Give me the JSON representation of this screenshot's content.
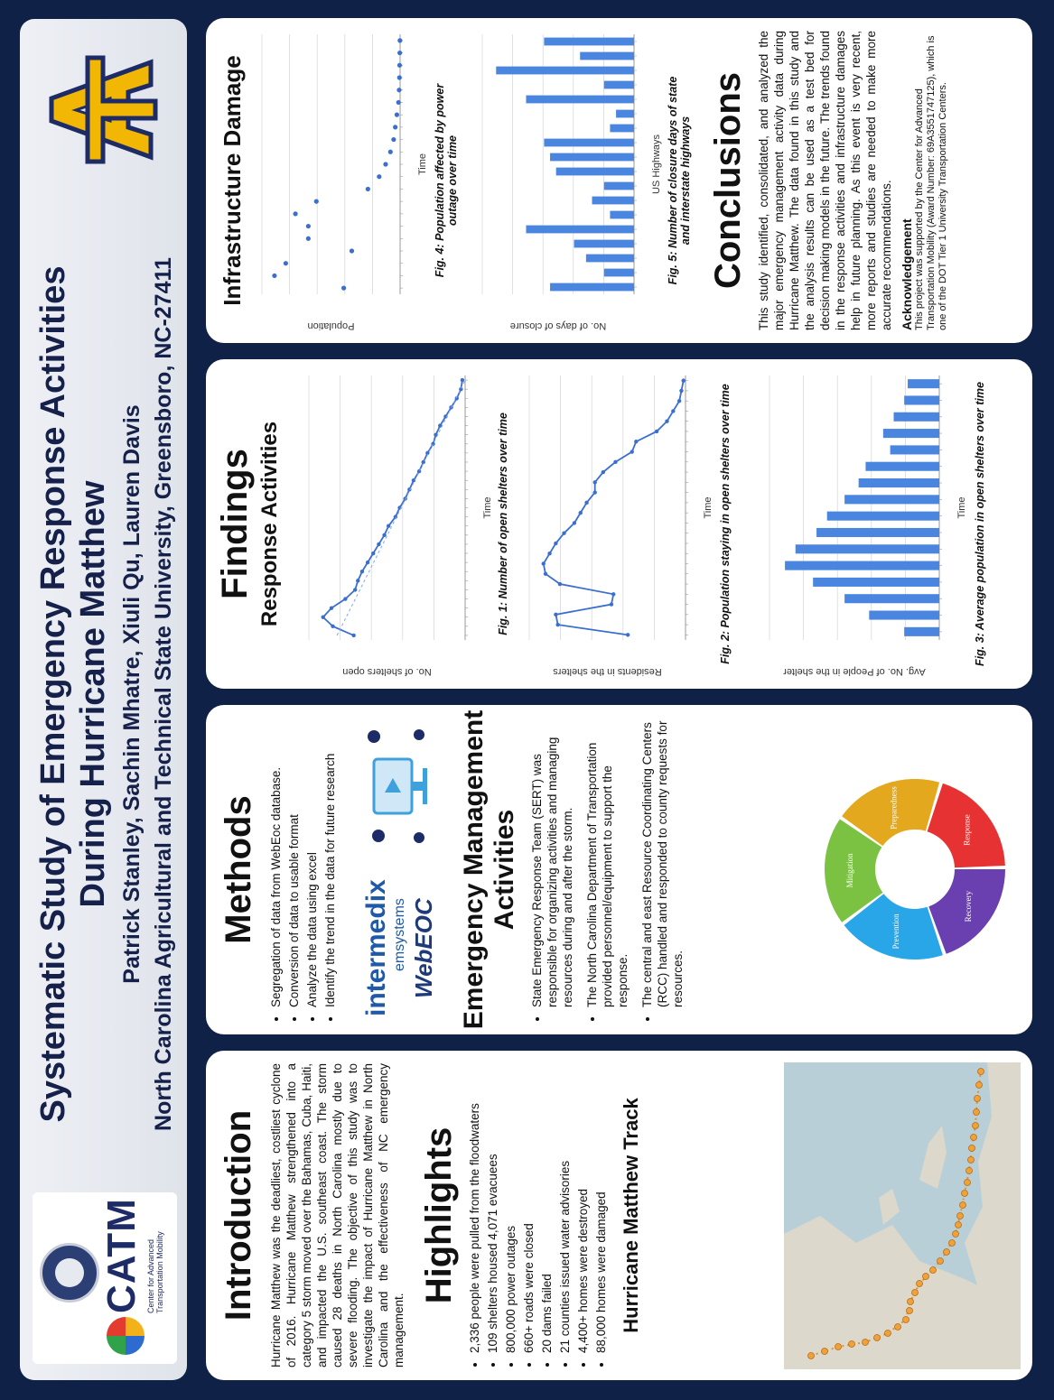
{
  "header": {
    "title_line1": "Systematic Study of Emergency Response Activities",
    "title_line2": "During Hurricane Matthew",
    "authors": "Patrick Stanley, Sachin Mhatre, Xiuli Qu, Lauren Davis",
    "affiliation": "North Carolina Agricultural and Technical State University, Greensboro, NC-27411",
    "logo_left_text": "CATM",
    "logo_left_tagline": "Center for Advanced Transportation Mobility",
    "logo_right_text": "AT"
  },
  "introduction": {
    "heading": "Introduction",
    "text": "Hurricane Matthew was the deadliest, costliest cyclone of 2016. Hurricane Matthew strengthened into a category 5 storm moved over the Bahamas, Cuba, Haiti, and impacted the U.S. southeast coast. The storm caused 28 deaths in North Carolina mostly due to severe flooding. The objective of this study was to investigate the impact of Hurricane Matthew in North Carolina and the effectiveness of NC emergency management."
  },
  "highlights": {
    "heading": "Highlights",
    "items": [
      "2,336 people were pulled from the floodwaters",
      "109 shelters housed 4,071 evacuees",
      "800,000 power outages",
      "660+ roads were closed",
      "20 dams failed",
      "21 counties issued water advisories",
      "4,400+ homes were destroyed",
      "88,000 homes were damaged"
    ]
  },
  "track": {
    "heading": "Hurricane Matthew Track"
  },
  "methods": {
    "heading": "Methods",
    "items": [
      "Segregation of data from WebEoc database.",
      "Conversion of data to usable format",
      "Analyze the data using excel",
      "Identify the trend in the data for future research"
    ],
    "logo_line1": "intermedix",
    "logo_line2": "emsystems",
    "logo_line3": "WebEOC"
  },
  "em_activities": {
    "heading_line1": "Emergency Management",
    "heading_line2": "Activities",
    "items": [
      "State Emergency Response Team (SERT) was responsible for organizing activities and managing resources during and after the storm.",
      "The North Carolina Department of Transportation provided personnel/equipment to support the response.",
      "The central and east Resource Coordinating Centers (RCC) handled and responded to county requests for resources."
    ],
    "cycle": [
      "Mitigation",
      "Preparedness",
      "Response",
      "Recovery",
      "Prevention"
    ]
  },
  "findings": {
    "heading": "Findings",
    "subheading": "Response Activities",
    "fig1_caption": "Fig. 1: Number of open shelters over time",
    "fig2_caption": "Fig. 2: Population staying in open shelters over time",
    "fig3_caption": "Fig. 3: Average population in open shelters over time",
    "fig1_ylabel": "No. of shelters open",
    "fig2_ylabel": "Residents in the shelters",
    "fig3_ylabel": "Avg. No. of People in the shelter",
    "time_label": "Time"
  },
  "infrastructure": {
    "heading": "Infrastructure Damage",
    "fig4_caption_line1": "Fig. 4: Population affected by power",
    "fig4_caption_line2": "outage over time",
    "fig4_ylabel": "Population",
    "fig5_caption_line1": "Fig. 5: Number of closure days of state",
    "fig5_caption_line2": "and interstate highways",
    "fig5_ylabel": "No. of days of closure",
    "fig5_xlabel": "US Highways",
    "time_label": "Time"
  },
  "conclusions": {
    "heading": "Conclusions",
    "text": "This study identified, consolidated, and analyzed the major emergency management activity data during Hurricane Matthew. The data found in this study and the analysis results can be used as a test bed for decision making models in the future. The trends found in the response activities and infrastructure damages help in future planning. As this event is very recent, more reports and studies are needed to make more accurate recommendations.",
    "ack_heading": "Acknowledgement",
    "ack_text": "This project was supported by the Center for Advanced Transportation Mobility (Award Number: 69A3551747125), which is one of the DOT Tier 1 University Transportation Centers."
  },
  "chart_data": [
    {
      "type": "line",
      "title": "Fig. 1: Number of open shelters over time",
      "ylabel": "No. of shelters open",
      "xlabel": "Time",
      "values": [
        80,
        95,
        102,
        96,
        86,
        79,
        77,
        74,
        70,
        66,
        62,
        58,
        55,
        50,
        47,
        43,
        40,
        37,
        33,
        30,
        27,
        23,
        21,
        18,
        14,
        10,
        6,
        3,
        2
      ]
    },
    {
      "type": "line",
      "title": "Fig. 2: Population staying in open shelters over time",
      "ylabel": "Residents in the shelters",
      "xlabel": "Time",
      "values": [
        1400,
        3100,
        3150,
        1800,
        1750,
        3050,
        3400,
        3450,
        3300,
        3150,
        2950,
        2700,
        2550,
        2400,
        2200,
        2200,
        2000,
        1700,
        1300,
        1200,
        700,
        450,
        300,
        150,
        100,
        50
      ]
    },
    {
      "type": "bar",
      "title": "Fig. 3: Average population in open shelters over time",
      "ylabel": "Avg. No. of People in the shelter",
      "xlabel": "Time",
      "values": [
        10,
        20,
        27,
        36,
        44,
        41,
        35,
        32,
        27,
        23,
        21,
        14,
        16,
        13,
        10,
        9
      ]
    },
    {
      "type": "scatter",
      "title": "Fig. 4: Population affected by power outage over time",
      "ylabel": "Population",
      "xlabel": "Time",
      "values": [
        350000,
        780000,
        710000,
        300000,
        570000,
        570000,
        650000,
        520000,
        200000,
        130000,
        90000,
        60000,
        40000,
        30000,
        20000,
        10000,
        6000,
        4000,
        3000,
        2000,
        1000
      ]
    },
    {
      "type": "bar",
      "title": "Fig. 5: Number of closure days of state and interstate highways",
      "ylabel": "No. of days of closure",
      "xlabel": "US Highways",
      "values": [
        14,
        5,
        8,
        10,
        18,
        4,
        7,
        5,
        13,
        14,
        15,
        4,
        3,
        18,
        5,
        23,
        9,
        15
      ]
    }
  ]
}
